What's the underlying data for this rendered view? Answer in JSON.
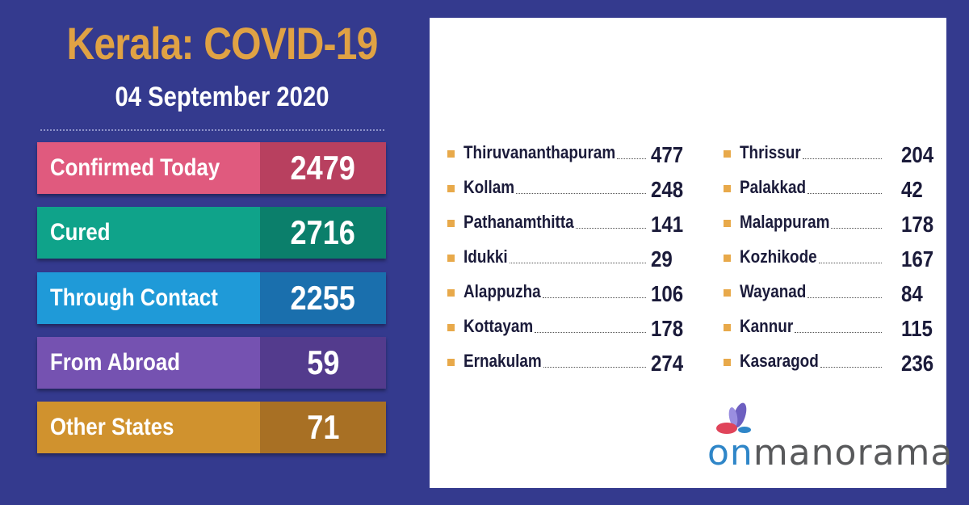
{
  "header": {
    "title": "Kerala: COVID-19",
    "date": "04 September 2020"
  },
  "stats": [
    {
      "label": "Confirmed Today",
      "value": "2479",
      "label_color": "#e05a7e",
      "value_color": "#b8405f"
    },
    {
      "label": "Cured",
      "value": "2716",
      "label_color": "#0fa38a",
      "value_color": "#0b7f6b"
    },
    {
      "label": "Through Contact",
      "value": "2255",
      "label_color": "#1f9ad8",
      "value_color": "#1a6fad"
    },
    {
      "label": "From Abroad",
      "value": "59",
      "label_color": "#7552b1",
      "value_color": "#533b8d"
    },
    {
      "label": "Other States",
      "value": "71",
      "label_color": "#d0922e",
      "value_color": "#a87024"
    }
  ],
  "districts_left": [
    {
      "name": "Thiruvananthapuram",
      "count": "477"
    },
    {
      "name": "Kollam",
      "count": "248"
    },
    {
      "name": "Pathanamthitta",
      "count": "141"
    },
    {
      "name": "Idukki",
      "count": "29"
    },
    {
      "name": "Alappuzha",
      "count": "106"
    },
    {
      "name": "Kottayam",
      "count": "178"
    },
    {
      "name": "Ernakulam",
      "count": "274"
    }
  ],
  "districts_right": [
    {
      "name": "Thrissur",
      "count": "204"
    },
    {
      "name": "Palakkad",
      "count": "42"
    },
    {
      "name": "Malappuram",
      "count": "178"
    },
    {
      "name": "Kozhikode",
      "count": "167"
    },
    {
      "name": "Wayanad",
      "count": "84"
    },
    {
      "name": "Kannur",
      "count": "115"
    },
    {
      "name": "Kasaragod",
      "count": "236"
    }
  ],
  "logo": {
    "part1": "on",
    "part2": "manorama"
  },
  "colors": {
    "background": "#343a8e",
    "title": "#e0a244",
    "bullet": "#e8a94a"
  }
}
